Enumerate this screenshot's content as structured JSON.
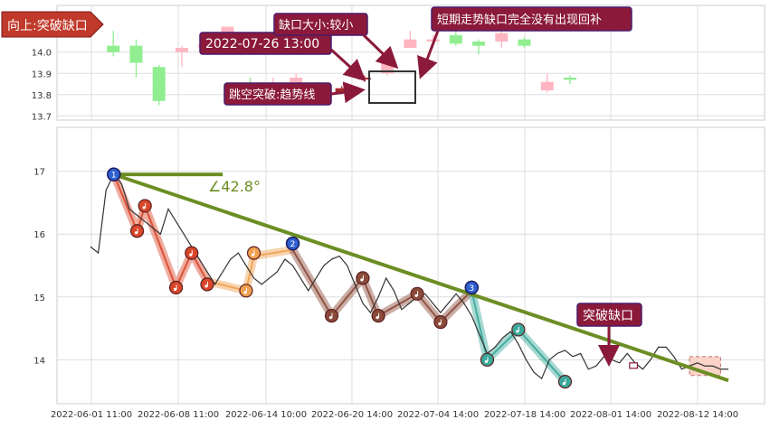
{
  "colors": {
    "up": "#ffb6c1",
    "down": "#90ee90",
    "gap_candle": "#a52a2a",
    "annotation_fill": "#8b1a3a",
    "annotation_border": "#4b1a6b",
    "trend_line": "#6b8e23",
    "price_line": "#333333",
    "wave_red": "#d9472b",
    "wave_orange": "#f0a050",
    "wave_brown": "#8b4a3a",
    "wave_teal": "#3aa89a",
    "node_blue": "#3060d0",
    "grid": "#dddddd"
  },
  "annotations": {
    "direction_tag": "向上:突破缺口",
    "gap_date": "2022-07-26 13:00",
    "gap_size": "缺口大小:较小",
    "gap_type": "跳空突破:趋势线",
    "not_filled": "短期走势缺口完全没有出现回补",
    "breakout_tag": "突破缺口",
    "angle_label": "∠42.8°"
  },
  "chart_data": [
    {
      "type": "candlestick",
      "panel": "top",
      "ylim": [
        13.68,
        14.22
      ],
      "yticks": [
        "13.7",
        "13.8",
        "13.9",
        "14.0"
      ],
      "candles": [
        {
          "open": 14.13,
          "close": 14.13,
          "high": 14.14,
          "low": 14.12,
          "dir": "up"
        },
        {
          "open": 14.0,
          "close": 14.03,
          "high": 14.1,
          "low": 13.98,
          "dir": "down"
        },
        {
          "open": 14.03,
          "close": 13.95,
          "high": 14.06,
          "low": 13.88,
          "dir": "down"
        },
        {
          "open": 13.93,
          "close": 13.77,
          "high": 13.94,
          "low": 13.75,
          "dir": "down"
        },
        {
          "open": 14.0,
          "close": 14.02,
          "high": 14.03,
          "low": 13.93,
          "dir": "up"
        },
        {
          "open": 14.02,
          "close": 14.04,
          "high": 14.05,
          "low": 14.0,
          "dir": "up"
        },
        {
          "open": 14.08,
          "close": 14.12,
          "high": 14.12,
          "low": 14.04,
          "dir": "up"
        },
        {
          "open": 13.85,
          "close": 13.85,
          "high": 13.88,
          "low": 13.82,
          "dir": "down"
        },
        {
          "open": 13.8,
          "close": 13.84,
          "high": 13.88,
          "low": 13.79,
          "dir": "up"
        },
        {
          "open": 13.85,
          "close": 13.88,
          "high": 13.9,
          "low": 13.84,
          "dir": "up"
        },
        {
          "open": 13.85,
          "close": 13.82,
          "high": 13.86,
          "low": 13.8,
          "dir": "down"
        },
        {
          "open": 13.81,
          "close": 13.83,
          "high": 13.84,
          "low": 13.81,
          "dir": "gap"
        },
        {
          "open": 13.88,
          "close": 13.88,
          "high": 13.89,
          "low": 13.86,
          "dir": "gap"
        },
        {
          "open": 13.9,
          "close": 13.95,
          "high": 13.96,
          "low": 13.89,
          "dir": "up"
        },
        {
          "open": 14.02,
          "close": 14.06,
          "high": 14.1,
          "low": 14.02,
          "dir": "up"
        },
        {
          "open": 14.05,
          "close": 14.06,
          "high": 14.08,
          "low": 14.02,
          "dir": "up"
        },
        {
          "open": 14.08,
          "close": 14.04,
          "high": 14.1,
          "low": 14.03,
          "dir": "down"
        },
        {
          "open": 14.05,
          "close": 14.03,
          "high": 14.06,
          "low": 13.99,
          "dir": "down"
        },
        {
          "open": 14.05,
          "close": 14.09,
          "high": 14.12,
          "low": 14.02,
          "dir": "up"
        },
        {
          "open": 14.06,
          "close": 14.03,
          "high": 14.07,
          "low": 14.02,
          "dir": "down"
        },
        {
          "open": 13.86,
          "close": 13.82,
          "high": 13.9,
          "low": 13.81,
          "dir": "up"
        },
        {
          "open": 13.88,
          "close": 13.87,
          "high": 13.89,
          "low": 13.85,
          "dir": "down"
        }
      ]
    },
    {
      "type": "line",
      "panel": "bottom",
      "ylim": [
        13.3,
        17.7
      ],
      "yticks": [
        "14",
        "15",
        "16",
        "17"
      ],
      "xtick_labels": [
        "2022-06-01 11:00",
        "2022-06-08 11:00",
        "2022-06-14 10:00",
        "2022-06-20 14:00",
        "2022-07-04 14:00",
        "2022-07-18 14:00",
        "2022-08-01 14:00",
        "2022-08-12 14:00"
      ],
      "price": [
        [
          0,
          15.8
        ],
        [
          1,
          15.7
        ],
        [
          2,
          16.7
        ],
        [
          3,
          16.95
        ],
        [
          4,
          16.8
        ],
        [
          5,
          16.4
        ],
        [
          6,
          16.3
        ],
        [
          7,
          16.2
        ],
        [
          8,
          16.1
        ],
        [
          9,
          16.0
        ],
        [
          10,
          16.4
        ],
        [
          11,
          16.2
        ],
        [
          12,
          16.0
        ],
        [
          13,
          15.8
        ],
        [
          14,
          15.6
        ],
        [
          15,
          15.4
        ],
        [
          16,
          15.2
        ],
        [
          17,
          15.4
        ],
        [
          18,
          15.6
        ],
        [
          19,
          15.7
        ],
        [
          20,
          15.5
        ],
        [
          21,
          15.3
        ],
        [
          22,
          15.2
        ],
        [
          23,
          15.3
        ],
        [
          24,
          15.4
        ],
        [
          25,
          15.6
        ],
        [
          26,
          15.5
        ],
        [
          27,
          15.3
        ],
        [
          28,
          15.1
        ],
        [
          29,
          15.3
        ],
        [
          30,
          15.5
        ],
        [
          31,
          15.6
        ],
        [
          32,
          15.65
        ],
        [
          33,
          15.5
        ],
        [
          34,
          15.2
        ],
        [
          35,
          14.9
        ],
        [
          36,
          14.75
        ],
        [
          37,
          15.0
        ],
        [
          38,
          15.3
        ],
        [
          39,
          15.1
        ],
        [
          40,
          14.8
        ],
        [
          41,
          14.9
        ],
        [
          42,
          15.0
        ],
        [
          43,
          15.05
        ],
        [
          44,
          14.9
        ],
        [
          45,
          14.75
        ],
        [
          46,
          14.9
        ],
        [
          47,
          15.05
        ],
        [
          48,
          14.9
        ],
        [
          49,
          14.7
        ],
        [
          50,
          14.4
        ],
        [
          51,
          14.1
        ],
        [
          52,
          14.2
        ],
        [
          53,
          14.35
        ],
        [
          54,
          14.45
        ],
        [
          55,
          14.25
        ],
        [
          56,
          14.0
        ],
        [
          57,
          13.8
        ],
        [
          58,
          13.7
        ],
        [
          59,
          14.0
        ],
        [
          60,
          14.1
        ],
        [
          61,
          14.15
        ],
        [
          62,
          14.05
        ],
        [
          63,
          14.1
        ],
        [
          64,
          13.85
        ],
        [
          65,
          13.9
        ],
        [
          66,
          14.05
        ],
        [
          67,
          14.0
        ],
        [
          68,
          13.95
        ],
        [
          69,
          14.1
        ],
        [
          70,
          13.95
        ],
        [
          71,
          13.85
        ],
        [
          72,
          14.0
        ],
        [
          73,
          14.2
        ],
        [
          74,
          14.2
        ],
        [
          75,
          14.05
        ],
        [
          76,
          13.85
        ],
        [
          77,
          13.9
        ],
        [
          78,
          13.95
        ],
        [
          79,
          13.9
        ],
        [
          80,
          13.9
        ],
        [
          81,
          13.85
        ],
        [
          82,
          13.85
        ]
      ],
      "waves": [
        {
          "color": "wave_red",
          "points": [
            [
              3,
              16.95
            ],
            [
              6,
              16.05
            ],
            [
              7,
              16.45
            ],
            [
              11,
              15.15
            ],
            [
              13,
              15.7
            ],
            [
              15,
              15.25
            ]
          ]
        },
        {
          "color": "wave_orange",
          "points": [
            [
              15,
              15.25
            ],
            [
              20,
              15.1
            ],
            [
              21,
              15.65
            ],
            [
              26,
              15.75
            ]
          ]
        },
        {
          "color": "wave_brown",
          "points": [
            [
              26,
              15.75
            ],
            [
              31,
              14.7
            ],
            [
              35,
              15.3
            ],
            [
              37,
              14.7
            ],
            [
              42,
              15.05
            ],
            [
              45,
              14.6
            ],
            [
              49,
              15.1
            ]
          ]
        },
        {
          "color": "wave_teal",
          "points": [
            [
              49,
              15.1
            ],
            [
              51,
              14.0
            ],
            [
              55,
              14.48
            ],
            [
              61,
              13.65
            ]
          ]
        }
      ],
      "nodes": [
        {
          "x": 3,
          "y": 16.95,
          "label": "1",
          "style": "blue"
        },
        {
          "x": 6,
          "y": 16.05,
          "label": "",
          "style": "wave_red"
        },
        {
          "x": 7,
          "y": 16.45,
          "label": "",
          "style": "wave_red"
        },
        {
          "x": 11,
          "y": 15.15,
          "label": "",
          "style": "wave_red"
        },
        {
          "x": 13,
          "y": 15.7,
          "label": "",
          "style": "wave_red"
        },
        {
          "x": 15,
          "y": 15.2,
          "label": "",
          "style": "wave_red"
        },
        {
          "x": 20,
          "y": 15.1,
          "label": "",
          "style": "wave_orange"
        },
        {
          "x": 21,
          "y": 15.7,
          "label": "",
          "style": "wave_orange"
        },
        {
          "x": 26,
          "y": 15.85,
          "label": "2",
          "style": "blue"
        },
        {
          "x": 31,
          "y": 14.7,
          "label": "",
          "style": "wave_brown"
        },
        {
          "x": 35,
          "y": 15.3,
          "label": "",
          "style": "wave_brown"
        },
        {
          "x": 37,
          "y": 14.7,
          "label": "",
          "style": "wave_brown"
        },
        {
          "x": 42,
          "y": 15.05,
          "label": "",
          "style": "wave_brown"
        },
        {
          "x": 45,
          "y": 14.6,
          "label": "",
          "style": "wave_brown"
        },
        {
          "x": 49,
          "y": 15.15,
          "label": "3",
          "style": "blue"
        },
        {
          "x": 51,
          "y": 14.0,
          "label": "",
          "style": "wave_teal"
        },
        {
          "x": 55,
          "y": 14.48,
          "label": "",
          "style": "wave_teal"
        },
        {
          "x": 61,
          "y": 13.65,
          "label": "",
          "style": "wave_teal"
        }
      ],
      "trendline": [
        [
          3,
          16.95
        ],
        [
          82,
          13.67
        ]
      ],
      "angle_ref": [
        [
          3,
          16.95
        ],
        [
          17,
          16.95
        ]
      ],
      "gap_marker": [
        [
          70,
          13.9
        ],
        [
          71,
          13.95
        ]
      ],
      "gap_zone": [
        [
          77,
          13.75
        ],
        [
          81,
          14.05
        ]
      ]
    }
  ]
}
